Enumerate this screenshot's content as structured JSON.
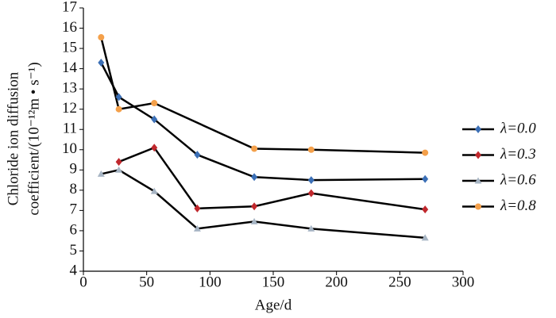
{
  "chart_data": {
    "type": "line",
    "xlabel": "Age/d",
    "ylabel": [
      "Chloride ion diffusion",
      "coefficient/(10⁻¹²m • s⁻¹)"
    ],
    "xlim": [
      0,
      300
    ],
    "xticks": [
      0,
      50,
      100,
      150,
      200,
      250,
      300
    ],
    "ylim": [
      4,
      17
    ],
    "yticks": [
      4,
      5,
      6,
      7,
      8,
      9,
      10,
      11,
      12,
      13,
      14,
      15,
      16,
      17
    ],
    "line_color": "#000000",
    "legend": "right",
    "series": [
      {
        "name": "λ=0.0",
        "color": "#3b6fb6",
        "marker": "diamond",
        "x": [
          14,
          28,
          56,
          90,
          135,
          180,
          270
        ],
        "values": [
          14.3,
          12.6,
          11.5,
          9.75,
          8.65,
          8.5,
          8.55
        ]
      },
      {
        "name": "λ=0.3",
        "color": "#c0282d",
        "marker": "diamond",
        "x": [
          28,
          56,
          90,
          135,
          180,
          270
        ],
        "values": [
          9.4,
          10.1,
          7.1,
          7.2,
          7.85,
          7.05
        ]
      },
      {
        "name": "λ=0.6",
        "color": "#a7b5c4",
        "marker": "triangle",
        "x": [
          14,
          28,
          56,
          90,
          135,
          180,
          270
        ],
        "values": [
          8.8,
          9.0,
          7.95,
          6.1,
          6.45,
          6.1,
          5.65
        ]
      },
      {
        "name": "λ=0.8",
        "color": "#f4a04a",
        "marker": "circle",
        "x": [
          14,
          28,
          56,
          135,
          180,
          270
        ],
        "values": [
          15.55,
          12.0,
          12.3,
          10.05,
          10.0,
          9.85
        ]
      }
    ]
  }
}
